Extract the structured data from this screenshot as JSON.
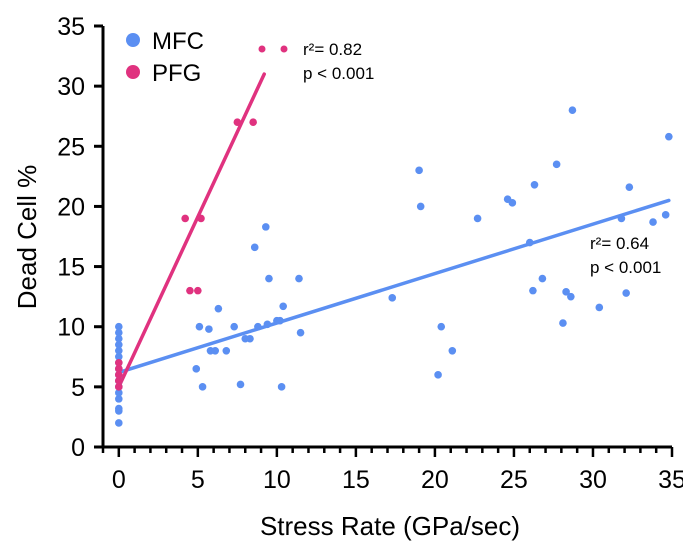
{
  "chart_data": {
    "type": "scatter",
    "xlabel": "Stress Rate (GPa/sec)",
    "ylabel": "Dead Cell %",
    "xlim": [
      -1,
      35
    ],
    "ylim": [
      0,
      35
    ],
    "x_ticks": [
      "0",
      "5",
      "10",
      "15",
      "20",
      "25",
      "30",
      "35"
    ],
    "y_ticks": [
      "0",
      "5",
      "10",
      "15",
      "20",
      "25",
      "30",
      "35"
    ],
    "legend": {
      "position": "top-left"
    },
    "series": [
      {
        "name": "MFC",
        "color": "#5b8ff2",
        "points": [
          [
            0,
            2
          ],
          [
            0,
            3
          ],
          [
            0,
            3.2
          ],
          [
            0,
            4
          ],
          [
            0,
            4.5
          ],
          [
            0,
            5
          ],
          [
            0,
            5.5
          ],
          [
            0,
            6
          ],
          [
            0,
            6.5
          ],
          [
            0,
            7
          ],
          [
            0,
            7.5
          ],
          [
            0,
            8
          ],
          [
            0,
            8.5
          ],
          [
            0,
            9
          ],
          [
            0,
            9.5
          ],
          [
            0,
            10
          ],
          [
            4.9,
            6.5
          ],
          [
            5.1,
            10
          ],
          [
            5.3,
            5
          ],
          [
            5.7,
            9.8
          ],
          [
            5.8,
            8
          ],
          [
            6.1,
            8
          ],
          [
            6.3,
            11.5
          ],
          [
            6.8,
            8
          ],
          [
            7.3,
            10
          ],
          [
            7.7,
            5.2
          ],
          [
            8,
            9
          ],
          [
            8.3,
            9
          ],
          [
            8.6,
            16.6
          ],
          [
            8.8,
            10
          ],
          [
            9.3,
            18.3
          ],
          [
            9.4,
            10.2
          ],
          [
            9.5,
            14
          ],
          [
            10,
            10.5
          ],
          [
            10.2,
            10.5
          ],
          [
            10.3,
            5
          ],
          [
            10.4,
            11.7
          ],
          [
            11.4,
            14
          ],
          [
            11.5,
            9.5
          ],
          [
            17.3,
            12.4
          ],
          [
            19,
            23
          ],
          [
            19.1,
            20
          ],
          [
            20.2,
            6
          ],
          [
            20.4,
            10
          ],
          [
            21.1,
            8
          ],
          [
            22.7,
            19
          ],
          [
            24.6,
            20.6
          ],
          [
            24.9,
            20.3
          ],
          [
            26,
            17
          ],
          [
            26.2,
            13
          ],
          [
            26.3,
            21.8
          ],
          [
            26.8,
            14
          ],
          [
            27.7,
            23.5
          ],
          [
            28.1,
            10.3
          ],
          [
            28.3,
            12.9
          ],
          [
            28.6,
            12.5
          ],
          [
            28.7,
            28
          ],
          [
            30.4,
            11.6
          ],
          [
            31.8,
            19
          ],
          [
            32.1,
            12.8
          ],
          [
            32.3,
            21.6
          ],
          [
            33.8,
            18.7
          ],
          [
            34.6,
            19.3
          ],
          [
            34.8,
            25.8
          ]
        ],
        "annotation": [
          "r²= 0.64",
          "p < 0.001"
        ]
      },
      {
        "name": "PFG",
        "color": "#e0327f",
        "points": [
          [
            0,
            5
          ],
          [
            0,
            5.5
          ],
          [
            0,
            6
          ],
          [
            0,
            6.5
          ],
          [
            0,
            7
          ],
          [
            4.2,
            19
          ],
          [
            4.5,
            13
          ],
          [
            5,
            13
          ],
          [
            5.2,
            19
          ],
          [
            7.5,
            27
          ],
          [
            8.5,
            27
          ]
        ],
        "annotation": [
          "r²= 0.82",
          "p < 0.001"
        ]
      }
    ],
    "fits": [
      {
        "series": "MFC",
        "x": [
          0,
          34.8
        ],
        "y": [
          6.2,
          20.5
        ]
      },
      {
        "series": "PFG",
        "x": [
          0,
          9.2
        ],
        "y": [
          5,
          31
        ]
      }
    ]
  }
}
